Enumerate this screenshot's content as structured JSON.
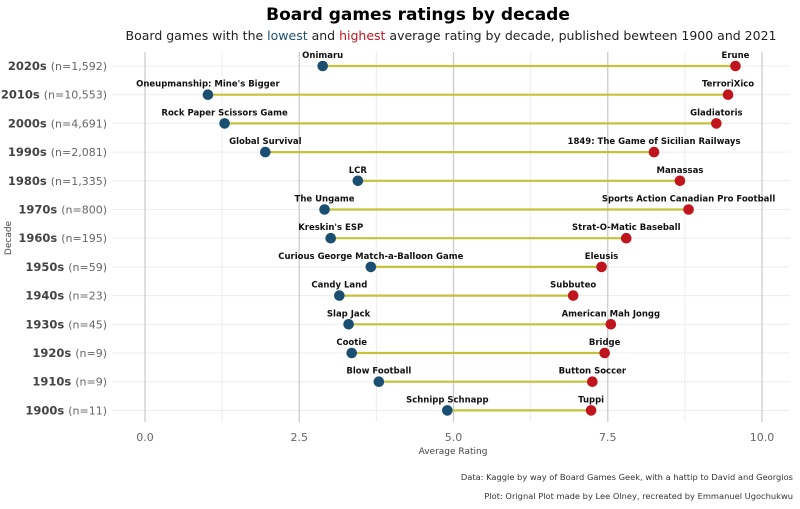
{
  "chart_data": {
    "type": "dumbbell",
    "title": "Board games ratings by decade",
    "subtitle": {
      "prefix": "Board games with the ",
      "low_word": "lowest",
      "middle": " and ",
      "high_word": "highest",
      "suffix": " average rating by decade, published bewteen 1900 and 2021"
    },
    "xlabel": "Average Rating",
    "ylabel": "Decade",
    "xlim": [
      0,
      10
    ],
    "xticks": [
      "0.0",
      "2.5",
      "5.0",
      "7.5",
      "10.0"
    ],
    "xtick_values": [
      0,
      2.5,
      5,
      7.5,
      10
    ],
    "colors": {
      "low": "#1b4f72",
      "high": "#c0151c",
      "segment": "#c3c23a",
      "major_grid": "#cccccc",
      "minor_grid": "#ececec"
    },
    "grid": true,
    "rows": [
      {
        "decade": "2020s",
        "n": "(n=1,592)",
        "low_name": "Onimaru",
        "low": 2.88,
        "high_name": "Erune",
        "high": 9.57
      },
      {
        "decade": "2010s",
        "n": "(n=10,553)",
        "low_name": "Oneupmanship: Mine's Bigger",
        "low": 1.02,
        "high_name": "TerroriXico",
        "high": 9.45
      },
      {
        "decade": "2000s",
        "n": "(n=4,691)",
        "low_name": "Rock Paper Scissors Game",
        "low": 1.29,
        "high_name": "Gladiatoris",
        "high": 9.26
      },
      {
        "decade": "1990s",
        "n": "(n=2,081)",
        "low_name": "Global Survival",
        "low": 1.95,
        "high_name": "1849: The Game of Sicilian Railways",
        "high": 8.25
      },
      {
        "decade": "1980s",
        "n": "(n=1,335)",
        "low_name": "LCR",
        "low": 3.45,
        "high_name": "Manassas",
        "high": 8.67
      },
      {
        "decade": "1970s",
        "n": "(n=800)",
        "low_name": "The Ungame",
        "low": 2.91,
        "high_name": "Sports Action Canadian Pro Football",
        "high": 8.81
      },
      {
        "decade": "1960s",
        "n": "(n=195)",
        "low_name": "Kreskin's ESP",
        "low": 3.01,
        "high_name": "Strat-O-Matic Baseball",
        "high": 7.8
      },
      {
        "decade": "1950s",
        "n": "(n=59)",
        "low_name": "Curious George Match-a-Balloon Game",
        "low": 3.66,
        "high_name": "Eleusis",
        "high": 7.4
      },
      {
        "decade": "1940s",
        "n": "(n=23)",
        "low_name": "Candy Land",
        "low": 3.15,
        "high_name": "Subbuteo",
        "high": 6.94
      },
      {
        "decade": "1930s",
        "n": "(n=45)",
        "low_name": "Slap Jack",
        "low": 3.3,
        "high_name": "American Mah Jongg",
        "high": 7.55
      },
      {
        "decade": "1920s",
        "n": "(n=9)",
        "low_name": "Cootie",
        "low": 3.35,
        "high_name": "Bridge",
        "high": 7.45
      },
      {
        "decade": "1910s",
        "n": "(n=9)",
        "low_name": "Blow Football",
        "low": 3.79,
        "high_name": "Button Soccer",
        "high": 7.25
      },
      {
        "decade": "1900s",
        "n": "(n=11)",
        "low_name": "Schnipp Schnapp",
        "low": 4.9,
        "high_name": "Tuppi",
        "high": 7.23
      }
    ],
    "caption_lines": [
      "Data: Kaggle by way of Board Games Geek, with a hattip to David and Georgios",
      "Plot: Orignal Plot made by Lee Olney, recreated by Emmanuel Ugochukwu"
    ]
  }
}
